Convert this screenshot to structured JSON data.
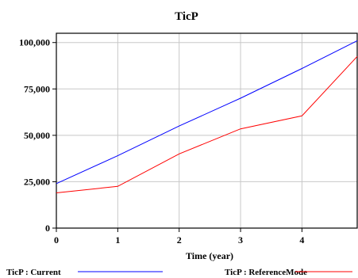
{
  "chart_data": {
    "type": "line",
    "title": "TicP",
    "xlabel": "Time (year)",
    "ylabel": "",
    "xlim": [
      0,
      4.9
    ],
    "ylim": [
      0,
      105000
    ],
    "x_ticks": [
      0,
      1,
      2,
      3,
      4
    ],
    "x_tick_labels": [
      "0",
      "1",
      "2",
      "3",
      "4"
    ],
    "y_ticks": [
      0,
      25000,
      50000,
      75000,
      100000
    ],
    "y_tick_labels": [
      "0",
      "25,000",
      "50,000",
      "75,000",
      "100,000"
    ],
    "grid": true,
    "legend_position": "bottom",
    "series": [
      {
        "name": "TicP : Current",
        "color": "#0000ff",
        "x": [
          0,
          1,
          2,
          3,
          4,
          4.9
        ],
        "y": [
          24000,
          39000,
          55000,
          70000,
          86000,
          101000
        ]
      },
      {
        "name": "TicP : ReferenceMode",
        "color": "#ff0000",
        "x": [
          0,
          1,
          2,
          3,
          4,
          4.9
        ],
        "y": [
          19000,
          22500,
          40000,
          53500,
          60500,
          92500
        ]
      }
    ]
  }
}
